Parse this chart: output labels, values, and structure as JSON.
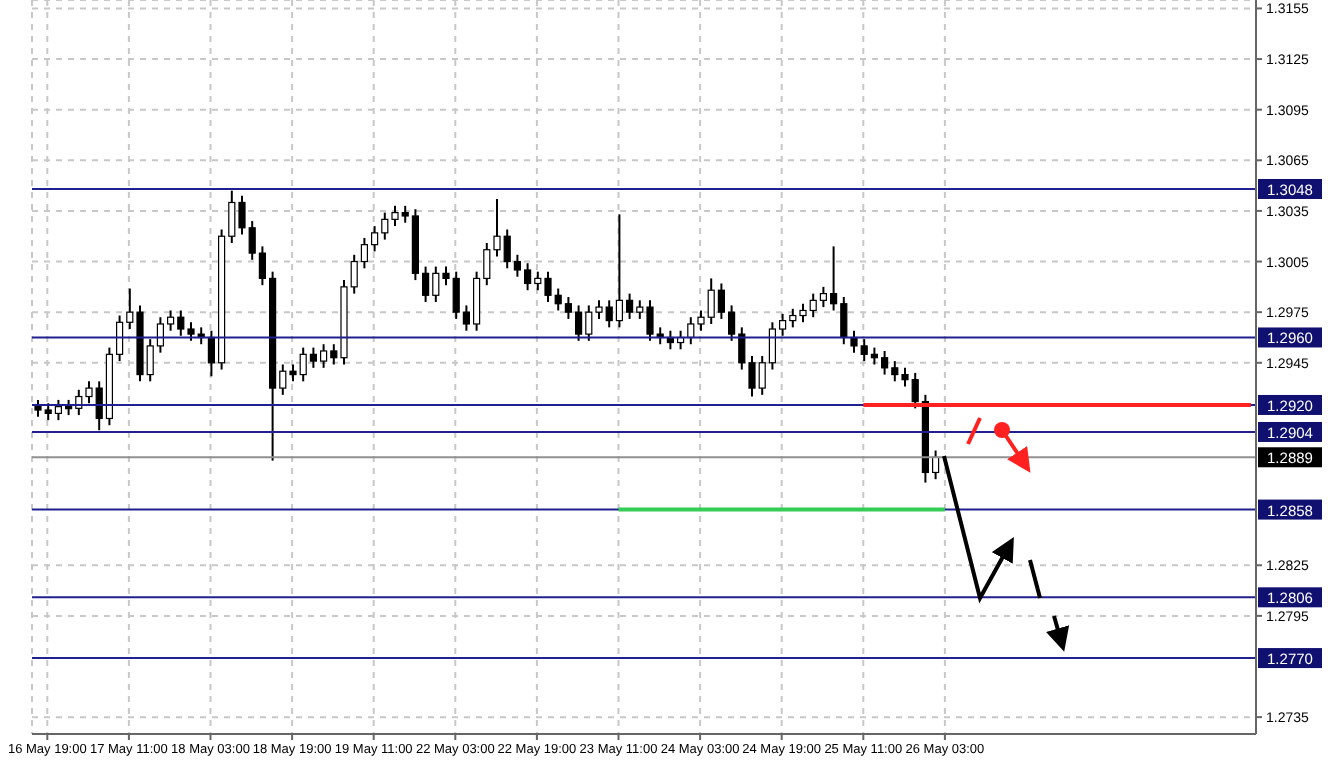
{
  "chart_data": {
    "type": "candlestick",
    "color": "#000000",
    "categories": [
      null,
      "16 May 19:00",
      null,
      null,
      null,
      null,
      null,
      null,
      null,
      "17 May 11:00",
      null,
      null,
      null,
      null,
      null,
      null,
      null,
      "18 May 03:00",
      null,
      null,
      null,
      null,
      null,
      null,
      null,
      "18 May 19:00",
      null,
      null,
      null,
      null,
      null,
      null,
      null,
      "19 May 11:00",
      null,
      null,
      null,
      null,
      null,
      null,
      null,
      "22 May 03:00",
      null,
      null,
      null,
      null,
      null,
      null,
      null,
      "22 May 19:00",
      null,
      null,
      null,
      null,
      null,
      null,
      null,
      "23 May 11:00",
      null,
      null,
      null,
      null,
      null,
      null,
      null,
      "24 May 03:00",
      null,
      null,
      null,
      null,
      null,
      null,
      null,
      "24 May 19:00",
      null,
      null,
      null,
      null,
      null,
      null,
      null,
      "25 May 11:00",
      null,
      null,
      null,
      null,
      null,
      null,
      null,
      "26 May 03:00",
      null,
      null,
      null,
      null,
      null,
      null,
      null,
      null,
      null,
      null,
      null,
      null,
      null,
      null,
      null,
      null,
      null,
      null,
      null,
      null,
      null,
      null,
      null,
      null,
      null,
      null,
      null,
      null,
      null,
      null
    ],
    "ohlc": [
      [
        1.292,
        1.2923,
        1.2913,
        1.2917
      ],
      [
        1.2917,
        1.2921,
        1.2911,
        1.2915
      ],
      [
        1.2915,
        1.2923,
        1.2911,
        1.2919
      ],
      [
        1.2919,
        1.2923,
        1.2914,
        1.2918
      ],
      [
        1.2918,
        1.2929,
        1.2914,
        1.2925
      ],
      [
        1.2925,
        1.2934,
        1.2921,
        1.293
      ],
      [
        1.293,
        1.2934,
        1.2905,
        1.2912
      ],
      [
        1.2912,
        1.2954,
        1.2908,
        1.295
      ],
      [
        1.295,
        1.2973,
        1.2946,
        1.2969
      ],
      [
        1.2969,
        1.2989,
        1.2965,
        1.2975
      ],
      [
        1.2975,
        1.2979,
        1.2934,
        1.2938
      ],
      [
        1.2938,
        1.2959,
        1.2934,
        1.2955
      ],
      [
        1.2955,
        1.2972,
        1.2951,
        1.2968
      ],
      [
        1.2968,
        1.2976,
        1.2964,
        1.2972
      ],
      [
        1.2972,
        1.2976,
        1.2961,
        1.2965
      ],
      [
        1.2965,
        1.2969,
        1.2958,
        1.2962
      ],
      [
        1.2962,
        1.2966,
        1.2956,
        1.296
      ],
      [
        1.296,
        1.2964,
        1.2937,
        1.2945
      ],
      [
        1.2945,
        1.3024,
        1.2941,
        1.302
      ],
      [
        1.302,
        1.3047,
        1.3016,
        1.304
      ],
      [
        1.304,
        1.3044,
        1.3021,
        1.3025
      ],
      [
        1.3025,
        1.3029,
        1.3006,
        1.301
      ],
      [
        1.301,
        1.3014,
        1.2991,
        1.2995
      ],
      [
        1.2995,
        1.2999,
        1.2887,
        1.293
      ],
      [
        1.293,
        1.2944,
        1.2926,
        1.294
      ],
      [
        1.294,
        1.2944,
        1.2934,
        1.2938
      ],
      [
        1.2938,
        1.2954,
        1.2934,
        1.295
      ],
      [
        1.295,
        1.2954,
        1.2942,
        1.2946
      ],
      [
        1.2946,
        1.2956,
        1.2942,
        1.2952
      ],
      [
        1.2952,
        1.2956,
        1.2944,
        1.2948
      ],
      [
        1.2948,
        1.2994,
        1.2944,
        1.299
      ],
      [
        1.299,
        1.3009,
        1.2986,
        1.3005
      ],
      [
        1.3005,
        1.3019,
        1.3001,
        1.3015
      ],
      [
        1.3015,
        1.3026,
        1.3011,
        1.3022
      ],
      [
        1.3022,
        1.3034,
        1.3018,
        1.303
      ],
      [
        1.303,
        1.3038,
        1.3026,
        1.3034
      ],
      [
        1.3034,
        1.3038,
        1.3028,
        1.3032
      ],
      [
        1.3032,
        1.3036,
        1.2994,
        1.2998
      ],
      [
        1.2998,
        1.3002,
        1.2981,
        1.2985
      ],
      [
        1.2985,
        1.3002,
        1.2981,
        1.2998
      ],
      [
        1.2998,
        1.3002,
        1.2991,
        1.2995
      ],
      [
        1.2995,
        1.2999,
        1.2971,
        1.2975
      ],
      [
        1.2975,
        1.2979,
        1.2964,
        1.2968
      ],
      [
        1.2968,
        1.2999,
        1.2964,
        1.2995
      ],
      [
        1.2995,
        1.3016,
        1.2991,
        1.3012
      ],
      [
        1.3012,
        1.3042,
        1.3008,
        1.302
      ],
      [
        1.302,
        1.3024,
        1.3001,
        1.3005
      ],
      [
        1.3005,
        1.3009,
        1.2996,
        1.3
      ],
      [
        1.3,
        1.3004,
        1.2988,
        1.2992
      ],
      [
        1.2992,
        1.2999,
        1.2988,
        1.2995
      ],
      [
        1.2995,
        1.2999,
        1.2981,
        1.2985
      ],
      [
        1.2985,
        1.2989,
        1.2976,
        1.298
      ],
      [
        1.298,
        1.2984,
        1.2971,
        1.2975
      ],
      [
        1.2975,
        1.2979,
        1.2958,
        1.2962
      ],
      [
        1.2962,
        1.2979,
        1.2958,
        1.2975
      ],
      [
        1.2975,
        1.2982,
        1.2971,
        1.2978
      ],
      [
        1.2978,
        1.2982,
        1.2966,
        1.297
      ],
      [
        1.297,
        1.3033,
        1.2966,
        1.2982
      ],
      [
        1.2982,
        1.2986,
        1.2971,
        1.2975
      ],
      [
        1.2975,
        1.2982,
        1.2971,
        1.2978
      ],
      [
        1.2978,
        1.2982,
        1.2958,
        1.2962
      ],
      [
        1.2962,
        1.2966,
        1.2956,
        1.296
      ],
      [
        1.296,
        1.2964,
        1.2953,
        1.2957
      ],
      [
        1.2957,
        1.2964,
        1.2953,
        1.296
      ],
      [
        1.296,
        1.2972,
        1.2956,
        1.2968
      ],
      [
        1.2968,
        1.2976,
        1.2964,
        1.2972
      ],
      [
        1.2972,
        1.2995,
        1.2968,
        1.2988
      ],
      [
        1.2988,
        1.2992,
        1.2971,
        1.2975
      ],
      [
        1.2975,
        1.2979,
        1.2958,
        1.2962
      ],
      [
        1.2962,
        1.2966,
        1.2941,
        1.2945
      ],
      [
        1.2945,
        1.2949,
        1.2925,
        1.293
      ],
      [
        1.293,
        1.2949,
        1.2926,
        1.2945
      ],
      [
        1.2945,
        1.2969,
        1.2941,
        1.2965
      ],
      [
        1.2965,
        1.2974,
        1.2961,
        1.297
      ],
      [
        1.297,
        1.2977,
        1.2966,
        1.2973
      ],
      [
        1.2973,
        1.298,
        1.2969,
        1.2976
      ],
      [
        1.2976,
        1.2986,
        1.2972,
        1.2982
      ],
      [
        1.2982,
        1.299,
        1.2978,
        1.2986
      ],
      [
        1.2986,
        1.3014,
        1.2976,
        1.298
      ],
      [
        1.298,
        1.2984,
        1.2956,
        1.296
      ],
      [
        1.296,
        1.2964,
        1.2951,
        1.2955
      ],
      [
        1.2955,
        1.2959,
        1.2946,
        1.295
      ],
      [
        1.295,
        1.2954,
        1.2944,
        1.2948
      ],
      [
        1.2948,
        1.2952,
        1.2938,
        1.2942
      ],
      [
        1.2942,
        1.2946,
        1.2934,
        1.2938
      ],
      [
        1.2938,
        1.2942,
        1.2931,
        1.2935
      ],
      [
        1.2935,
        1.2939,
        1.2918,
        1.2922
      ],
      [
        1.2922,
        1.2926,
        1.2874,
        1.288
      ],
      [
        1.288,
        1.2893,
        1.2876,
        1.2889
      ],
      null,
      null,
      null,
      null,
      null,
      null,
      null,
      null,
      null,
      null,
      null,
      null,
      null,
      null,
      null,
      null,
      null,
      null,
      null,
      null,
      null,
      null,
      null,
      null,
      null,
      null,
      null,
      null,
      null,
      null,
      null
    ],
    "series": [
      {
        "type": "line",
        "color": "#ff2020",
        "values": [
          null,
          null,
          null,
          null,
          null,
          null,
          null,
          null,
          null,
          null,
          null,
          null,
          null,
          null,
          null,
          null,
          null,
          null,
          null,
          null,
          null,
          null,
          null,
          null,
          null,
          null,
          null,
          null,
          null,
          null,
          null,
          null,
          null,
          null,
          null,
          null,
          null,
          null,
          null,
          null,
          null,
          null,
          null,
          null,
          null,
          null,
          null,
          null,
          null,
          null,
          null,
          null,
          null,
          null,
          null,
          null,
          null,
          null,
          null,
          null,
          null,
          null,
          null,
          null,
          null,
          null,
          null,
          null,
          null,
          null,
          null,
          null,
          null,
          null,
          null,
          null,
          null,
          null,
          null,
          null,
          null,
          1.292,
          1.292,
          1.292,
          1.292,
          1.292,
          1.292,
          1.292,
          1.292,
          1.292,
          1.292,
          1.292,
          1.292,
          1.292,
          1.292,
          1.292,
          1.292,
          1.292,
          1.292,
          1.292,
          1.292,
          1.292,
          1.292,
          1.292,
          1.292,
          1.292,
          1.292,
          1.292,
          1.292,
          1.292,
          1.292,
          1.292,
          1.292,
          1.292,
          1.292,
          1.292,
          1.292,
          1.292,
          1.292,
          1.292
        ]
      },
      {
        "type": "line",
        "color": "#33cc55",
        "values": [
          null,
          null,
          null,
          null,
          null,
          null,
          null,
          null,
          null,
          null,
          null,
          null,
          null,
          null,
          null,
          null,
          null,
          null,
          null,
          null,
          null,
          null,
          null,
          null,
          null,
          null,
          null,
          null,
          null,
          null,
          null,
          null,
          null,
          null,
          null,
          null,
          null,
          null,
          null,
          null,
          null,
          null,
          null,
          null,
          null,
          null,
          null,
          null,
          null,
          null,
          null,
          null,
          null,
          null,
          null,
          null,
          null,
          1.2858,
          1.2858,
          1.2858,
          1.2858,
          1.2858,
          1.2858,
          1.2858,
          1.2858,
          1.2858,
          1.2858,
          1.2858,
          1.2858,
          1.2858,
          1.2858,
          1.2858,
          1.2858,
          1.2858,
          1.2858,
          1.2858,
          1.2858,
          1.2858,
          1.2858,
          1.2858,
          1.2858,
          1.2858,
          1.2858,
          1.2858,
          1.2858,
          1.2858,
          1.2858,
          1.2858,
          1.2858,
          1.2858,
          null,
          null,
          null,
          null,
          null,
          null,
          null,
          null,
          null,
          null,
          null,
          null,
          null,
          null,
          null,
          null,
          null,
          null,
          null,
          null,
          null,
          null,
          null,
          null,
          null,
          null,
          null,
          null,
          null,
          null
        ]
      }
    ],
    "ylim": [
      1.2725,
      1.316
    ],
    "yticks": [
      1.2735,
      1.2795,
      1.2825,
      1.2945,
      1.2975,
      1.3005,
      1.3035,
      1.3065,
      1.3095,
      1.3125,
      1.3155
    ],
    "ref_lines": [
      {
        "axis": "y",
        "value": 1.3048,
        "label": "1.3048",
        "color": "#202090"
      },
      {
        "axis": "y",
        "value": 1.296,
        "label": "1.2960",
        "color": "#202090"
      },
      {
        "axis": "y",
        "value": 1.292,
        "label": "1.2920",
        "color": "#202090"
      },
      {
        "axis": "y",
        "value": 1.2904,
        "label": "1.2904",
        "color": "#202090"
      },
      {
        "axis": "y",
        "value": 1.2889,
        "label": "1.2889",
        "color": "#909090"
      },
      {
        "axis": "y",
        "value": 1.2858,
        "label": "1.2858",
        "color": "#202090"
      },
      {
        "axis": "y",
        "value": 1.2806,
        "label": "1.2806",
        "color": "#202090"
      },
      {
        "axis": "y",
        "value": 1.277,
        "label": "1.2770",
        "color": "#202090"
      }
    ],
    "grid": true,
    "legend": false
  }
}
